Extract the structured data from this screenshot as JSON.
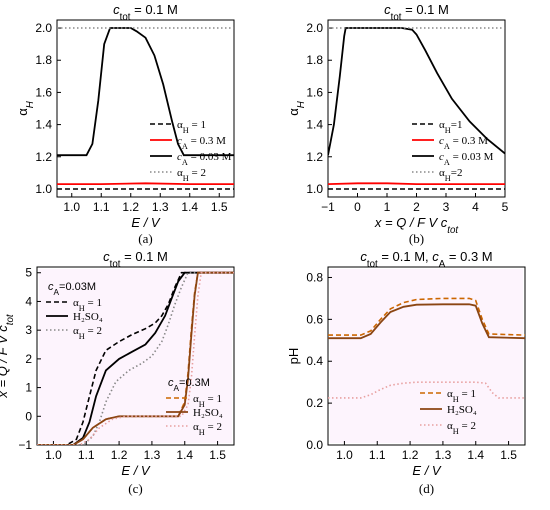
{
  "chart_data": [
    {
      "panel_label": "(a)",
      "type": "line",
      "title": "c_tot = 0.1 M",
      "xlabel": "E / V",
      "ylabel": "α_H",
      "xlim": [
        0.95,
        1.55
      ],
      "ylim": [
        0.95,
        2.05
      ],
      "xticks": [
        1.0,
        1.1,
        1.2,
        1.3,
        1.4,
        1.5
      ],
      "xtick_labels": [
        "1.0",
        "1.1",
        "1.2",
        "1.3",
        "1.4",
        "1.5"
      ],
      "yticks": [
        1.0,
        1.2,
        1.4,
        1.6,
        1.8,
        2.0
      ],
      "ytick_labels": [
        "1.0",
        "1.2",
        "1.4",
        "1.6",
        "1.8",
        "2.0"
      ],
      "legend_position": "bottom-right",
      "series": [
        {
          "name": "α_H = 1",
          "color": "#000000",
          "style": "dash",
          "x": [
            0.95,
            1.55
          ],
          "y": [
            1.0,
            1.0
          ]
        },
        {
          "name": "c_A = 0.3 M",
          "color": "#ff0000",
          "style": "solid",
          "x": [
            0.95,
            1.1,
            1.25,
            1.4,
            1.55
          ],
          "y": [
            1.03,
            1.03,
            1.035,
            1.03,
            1.03
          ]
        },
        {
          "name": "c_A = 0.03 M",
          "color": "#000000",
          "style": "solid",
          "x": [
            0.95,
            1.05,
            1.07,
            1.09,
            1.11,
            1.13,
            1.2,
            1.22,
            1.25,
            1.28,
            1.31,
            1.34,
            1.36,
            1.38,
            1.55
          ],
          "y": [
            1.21,
            1.21,
            1.28,
            1.55,
            1.9,
            2.0,
            2.0,
            1.98,
            1.94,
            1.83,
            1.65,
            1.42,
            1.28,
            1.21,
            1.21
          ]
        },
        {
          "name": "α_H = 2",
          "color": "#888888",
          "style": "dot",
          "x": [
            0.95,
            1.55
          ],
          "y": [
            2.0,
            2.0
          ]
        }
      ]
    },
    {
      "panel_label": "(b)",
      "type": "line",
      "title": "c_tot = 0.1 M",
      "xlabel": "x = Q / F V c_tot",
      "ylabel": "α_H",
      "xlim": [
        -1,
        5
      ],
      "ylim": [
        0.95,
        2.05
      ],
      "xticks": [
        -1,
        0,
        1,
        2,
        3,
        4,
        5
      ],
      "xtick_labels": [
        "−1",
        "0",
        "1",
        "2",
        "3",
        "4",
        "5"
      ],
      "yticks": [
        1.0,
        1.2,
        1.4,
        1.6,
        1.8,
        2.0
      ],
      "ytick_labels": [
        "1.0",
        "1.2",
        "1.4",
        "1.6",
        "1.8",
        "2.0"
      ],
      "legend_position": "bottom-right",
      "series": [
        {
          "name": "α_H=1",
          "color": "#000000",
          "style": "dash",
          "x": [
            -1,
            5
          ],
          "y": [
            1.0,
            1.0
          ]
        },
        {
          "name": "c_A = 0.3 M",
          "color": "#ff0000",
          "style": "solid",
          "x": [
            -1,
            0,
            1,
            2,
            3,
            4,
            5
          ],
          "y": [
            1.03,
            1.035,
            1.035,
            1.03,
            1.03,
            1.03,
            1.03
          ]
        },
        {
          "name": "c_A = 0.03 M",
          "color": "#000000",
          "style": "solid",
          "x": [
            -1,
            -0.8,
            -0.6,
            -0.45,
            -0.4,
            0.5,
            1.5,
            1.85,
            2.0,
            2.3,
            2.7,
            3.2,
            3.8,
            4.4,
            5.0
          ],
          "y": [
            1.21,
            1.4,
            1.7,
            1.95,
            2.0,
            2.0,
            2.0,
            1.99,
            1.96,
            1.86,
            1.72,
            1.56,
            1.42,
            1.31,
            1.22
          ]
        },
        {
          "name": "α_H=2",
          "color": "#888888",
          "style": "dot",
          "x": [
            -1,
            5
          ],
          "y": [
            2.0,
            2.0
          ]
        }
      ]
    },
    {
      "panel_label": "(c)",
      "type": "line",
      "title": "c_tot = 0.1 M",
      "xlabel": "E / V",
      "ylabel": "x = Q / F V c_tot",
      "xlim": [
        0.95,
        1.55
      ],
      "ylim": [
        -1,
        5.2
      ],
      "xticks": [
        1.0,
        1.1,
        1.2,
        1.3,
        1.4,
        1.5
      ],
      "xtick_labels": [
        "1.0",
        "1.1",
        "1.2",
        "1.3",
        "1.4",
        "1.5"
      ],
      "yticks": [
        -1,
        0,
        1,
        2,
        3,
        4,
        5
      ],
      "ytick_labels": [
        "−1",
        "0",
        "1",
        "2",
        "3",
        "4",
        "5"
      ],
      "legend_groups": [
        {
          "heading": "c_A=0.03M",
          "position": "top-left",
          "entries": [
            "α_H = 1",
            "H₂SO₄",
            "α_H = 2"
          ]
        },
        {
          "heading": "c_A=0.3M",
          "position": "bottom-right",
          "entries": [
            "α_H = 1",
            "H₂SO₄",
            "α_H = 2"
          ]
        }
      ],
      "series": [
        {
          "name": "α_H = 1 (c_A=0.03M)",
          "color": "#000000",
          "style": "dash",
          "x": [
            0.95,
            1.04,
            1.07,
            1.09,
            1.11,
            1.13,
            1.16,
            1.2,
            1.24,
            1.28,
            1.31,
            1.33,
            1.35,
            1.37,
            1.39,
            1.55
          ],
          "y": [
            -1,
            -1,
            -0.8,
            -0.2,
            0.7,
            1.6,
            2.3,
            2.6,
            2.85,
            3.05,
            3.25,
            3.5,
            3.9,
            4.5,
            5.0,
            5.0
          ]
        },
        {
          "name": "H₂SO₄ (c_A=0.03M)",
          "color": "#000000",
          "style": "solid",
          "x": [
            0.95,
            1.06,
            1.09,
            1.11,
            1.13,
            1.16,
            1.2,
            1.24,
            1.28,
            1.31,
            1.34,
            1.36,
            1.38,
            1.4,
            1.55
          ],
          "y": [
            -1,
            -1,
            -0.75,
            -0.2,
            0.7,
            1.6,
            2.0,
            2.25,
            2.5,
            2.9,
            3.5,
            4.1,
            4.7,
            5.0,
            5.0
          ]
        },
        {
          "name": "α_H = 2 (c_A=0.03M)",
          "color": "#888888",
          "style": "dot",
          "x": [
            0.95,
            1.09,
            1.12,
            1.14,
            1.16,
            1.19,
            1.23,
            1.27,
            1.3,
            1.33,
            1.35,
            1.37,
            1.39,
            1.41,
            1.55
          ],
          "y": [
            -1,
            -1,
            -0.7,
            -0.2,
            0.5,
            1.2,
            1.6,
            1.85,
            2.1,
            2.6,
            3.2,
            3.9,
            4.5,
            5.0,
            5.0
          ]
        },
        {
          "name": "α_H = 1 (c_A=0.3M)",
          "color": "#cc6600",
          "style": "dash",
          "x": [
            0.95,
            1.06,
            1.09,
            1.12,
            1.16,
            1.2,
            1.3,
            1.38,
            1.4,
            1.41,
            1.42,
            1.43,
            1.44,
            1.55
          ],
          "y": [
            -1,
            -1,
            -0.8,
            -0.4,
            -0.1,
            0,
            0,
            0,
            0.5,
            1.5,
            3.0,
            4.3,
            5.0,
            5.0
          ]
        },
        {
          "name": "H₂SO₄ (c_A=0.3M)",
          "color": "#8b4513",
          "style": "solid",
          "x": [
            0.95,
            1.06,
            1.09,
            1.12,
            1.16,
            1.2,
            1.3,
            1.38,
            1.4,
            1.41,
            1.42,
            1.43,
            1.44,
            1.55
          ],
          "y": [
            -1,
            -1,
            -0.8,
            -0.4,
            -0.1,
            0,
            0,
            0,
            0.4,
            1.3,
            2.8,
            4.2,
            5.0,
            5.0
          ]
        },
        {
          "name": "α_H = 2 (c_A=0.3M)",
          "color": "#e8a0a0",
          "style": "dot",
          "x": [
            0.95,
            1.08,
            1.11,
            1.14,
            1.18,
            1.22,
            1.3,
            1.39,
            1.41,
            1.42,
            1.43,
            1.44,
            1.45,
            1.55
          ],
          "y": [
            -1,
            -1,
            -0.8,
            -0.4,
            -0.1,
            0,
            0,
            0,
            0.4,
            1.3,
            2.8,
            4.2,
            5.0,
            5.0
          ]
        }
      ]
    },
    {
      "panel_label": "(d)",
      "type": "line",
      "title": "c_tot = 0.1 M, c_A = 0.3 M",
      "xlabel": "E / V",
      "ylabel": "pH",
      "xlim": [
        0.95,
        1.55
      ],
      "ylim": [
        0.0,
        0.85
      ],
      "xticks": [
        1.0,
        1.1,
        1.2,
        1.3,
        1.4,
        1.5
      ],
      "xtick_labels": [
        "1.0",
        "1.1",
        "1.2",
        "1.3",
        "1.4",
        "1.5"
      ],
      "yticks": [
        0.0,
        0.2,
        0.4,
        0.6,
        0.8
      ],
      "ytick_labels": [
        "0.0",
        "0.2",
        "0.4",
        "0.6",
        "0.8"
      ],
      "legend_position": "bottom-right",
      "series": [
        {
          "name": "α_H = 1",
          "color": "#cc6600",
          "style": "dash",
          "x": [
            0.95,
            1.05,
            1.08,
            1.11,
            1.14,
            1.18,
            1.22,
            1.3,
            1.38,
            1.4,
            1.42,
            1.44,
            1.55
          ],
          "y": [
            0.525,
            0.525,
            0.545,
            0.6,
            0.65,
            0.68,
            0.695,
            0.7,
            0.7,
            0.69,
            0.6,
            0.53,
            0.525
          ]
        },
        {
          "name": "H₂SO₄",
          "color": "#8b4513",
          "style": "solid",
          "x": [
            0.95,
            1.05,
            1.08,
            1.11,
            1.14,
            1.18,
            1.22,
            1.3,
            1.38,
            1.4,
            1.42,
            1.44,
            1.55
          ],
          "y": [
            0.51,
            0.51,
            0.53,
            0.585,
            0.635,
            0.66,
            0.67,
            0.672,
            0.672,
            0.665,
            0.58,
            0.515,
            0.51
          ]
        },
        {
          "name": "α_H = 2",
          "color": "#e8a0a0",
          "style": "dot",
          "x": [
            0.95,
            1.05,
            1.08,
            1.11,
            1.14,
            1.18,
            1.22,
            1.3,
            1.4,
            1.43,
            1.45,
            1.47,
            1.55
          ],
          "y": [
            0.225,
            0.225,
            0.24,
            0.265,
            0.285,
            0.295,
            0.3,
            0.3,
            0.3,
            0.295,
            0.25,
            0.225,
            0.225
          ]
        }
      ]
    }
  ]
}
